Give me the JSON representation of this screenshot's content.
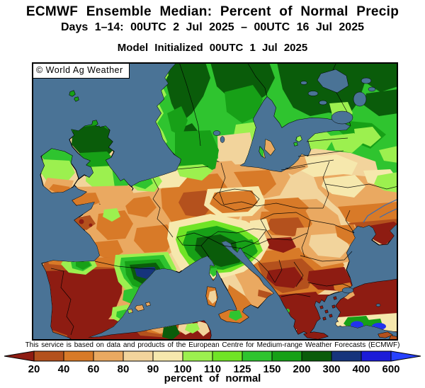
{
  "header": {
    "title": "ECMWF Ensemble Median: Percent of Normal Precip",
    "subtitle": "Days 1–14: 00UTC 2 Jul 2025 – 00UTC 16 Jul 2025",
    "model_init": "Model Initialized 00UTC 1 Jul 2025"
  },
  "map": {
    "watermark": "© World Ag Weather",
    "ocean_color": "#4a7396"
  },
  "footer_note": "This service is based on data and products of the European Centre for Medium-range Weather Forecasts (ECMWF)",
  "legend": {
    "caption": "percent of normal",
    "tick_labels": [
      "20",
      "40",
      "60",
      "80",
      "90",
      "100",
      "110",
      "125",
      "150",
      "200",
      "300",
      "400",
      "600"
    ],
    "segment_colors": [
      "#8e1c12",
      "#b4511d",
      "#d87a28",
      "#eaa961",
      "#f2d49c",
      "#f6e8ad",
      "#9cf04f",
      "#70e426",
      "#2fc42f",
      "#17a017",
      "#0a5c0a",
      "#16347c",
      "#1c1cd8",
      "#2741ff"
    ]
  }
}
